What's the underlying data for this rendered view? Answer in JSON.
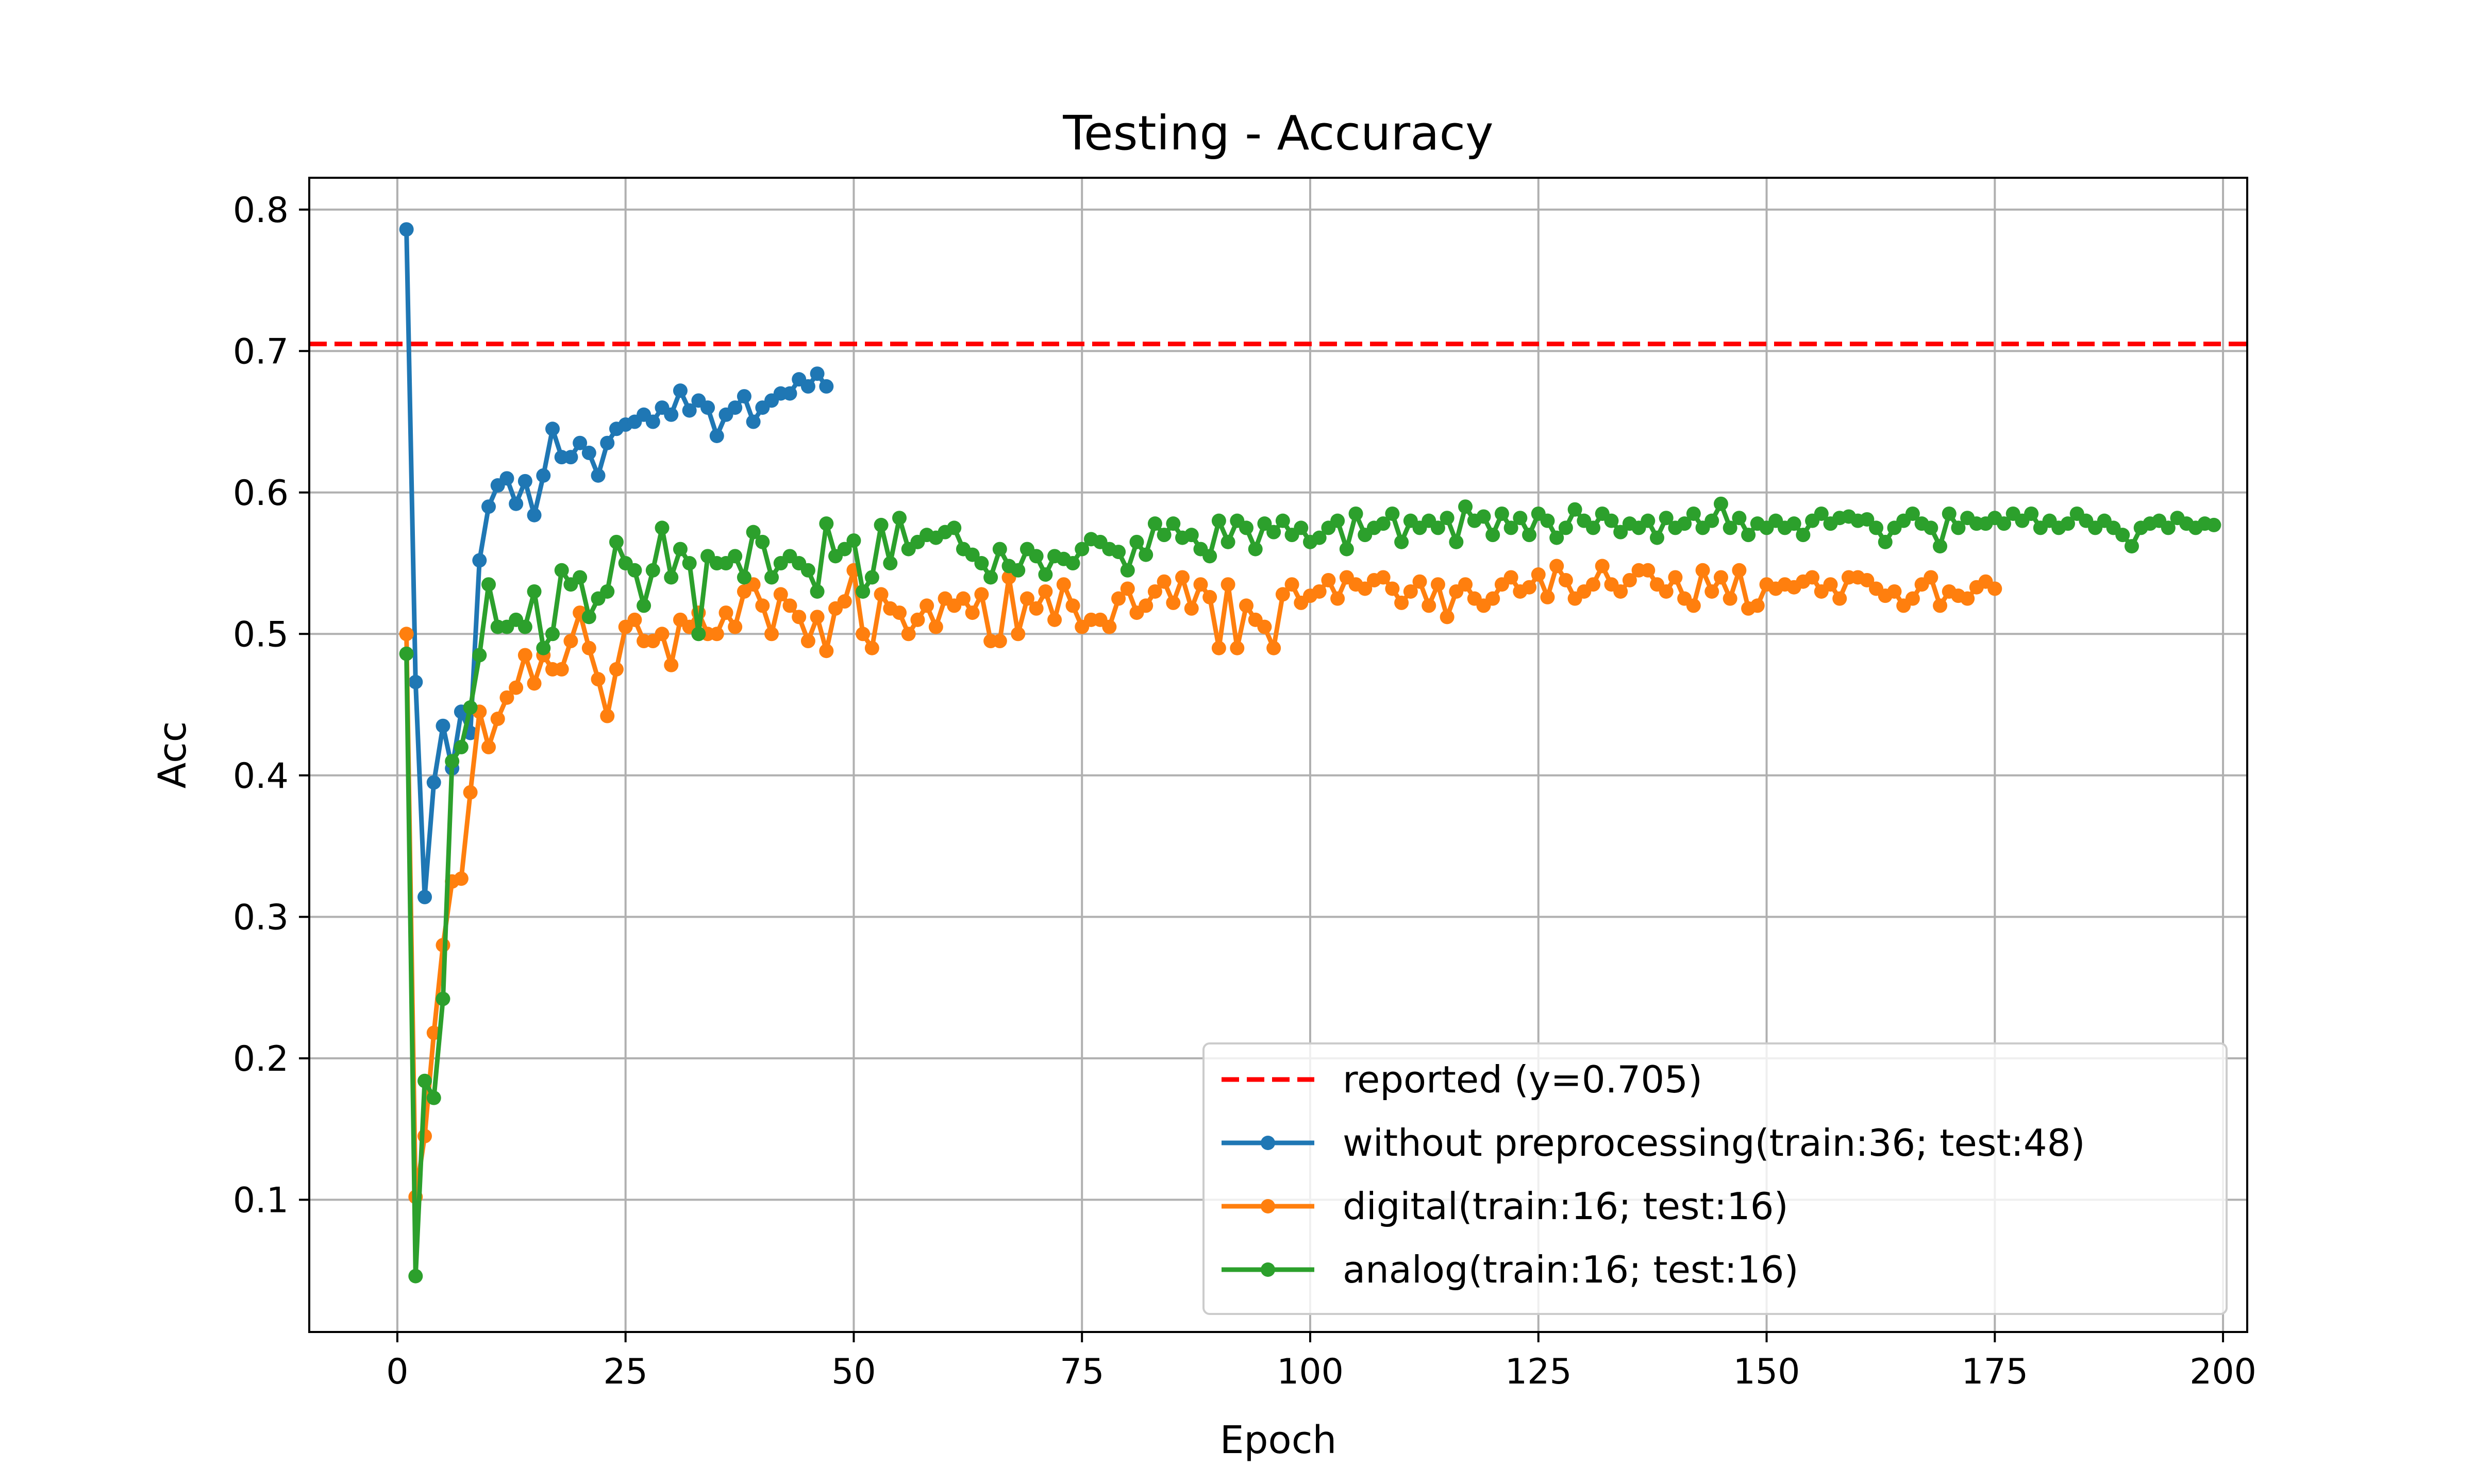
{
  "chart_data": {
    "type": "line",
    "title": "Testing - Accuracy",
    "xlabel": "Epoch",
    "ylabel": "Acc",
    "xlim": [
      -9.65,
      202.65
    ],
    "ylim": [
      0.0065,
      0.8225
    ],
    "xticks": [
      0,
      25,
      50,
      75,
      100,
      125,
      150,
      175,
      200
    ],
    "yticks": [
      0.1,
      0.2,
      0.3,
      0.4,
      0.5,
      0.6,
      0.7,
      0.8
    ],
    "xtick_labels": [
      "0",
      "25",
      "50",
      "75",
      "100",
      "125",
      "150",
      "175",
      "200"
    ],
    "ytick_labels": [
      "0.1",
      "0.2",
      "0.3",
      "0.4",
      "0.5",
      "0.6",
      "0.7",
      "0.8"
    ],
    "grid": true,
    "legend_position": "lower-right",
    "reference_line": {
      "label": "reported (y=0.705)",
      "y": 0.705,
      "color": "#ff0000",
      "style": "dashed"
    },
    "series": [
      {
        "name": "without preprocessing(train:36; test:48)",
        "color": "#1f77b4",
        "x_start": 1,
        "values": [
          0.786,
          0.466,
          0.314,
          0.395,
          0.435,
          0.405,
          0.445,
          0.43,
          0.552,
          0.59,
          0.605,
          0.61,
          0.592,
          0.608,
          0.584,
          0.612,
          0.645,
          0.625,
          0.625,
          0.635,
          0.628,
          0.612,
          0.635,
          0.645,
          0.648,
          0.65,
          0.655,
          0.65,
          0.66,
          0.655,
          0.672,
          0.658,
          0.665,
          0.66,
          0.64,
          0.655,
          0.66,
          0.668,
          0.65,
          0.66,
          0.665,
          0.67,
          0.67,
          0.68,
          0.675,
          0.684,
          0.675
        ]
      },
      {
        "name": "digital(train:16; test:16)",
        "color": "#ff7f0e",
        "x_start": 1,
        "values": [
          0.5,
          0.102,
          0.145,
          0.218,
          0.28,
          0.325,
          0.327,
          0.388,
          0.445,
          0.42,
          0.44,
          0.455,
          0.462,
          0.485,
          0.465,
          0.485,
          0.475,
          0.475,
          0.495,
          0.515,
          0.49,
          0.468,
          0.442,
          0.475,
          0.505,
          0.51,
          0.495,
          0.495,
          0.5,
          0.478,
          0.51,
          0.505,
          0.515,
          0.5,
          0.5,
          0.515,
          0.505,
          0.53,
          0.535,
          0.52,
          0.5,
          0.528,
          0.52,
          0.512,
          0.495,
          0.512,
          0.488,
          0.518,
          0.523,
          0.545,
          0.5,
          0.49,
          0.528,
          0.518,
          0.515,
          0.5,
          0.51,
          0.52,
          0.505,
          0.525,
          0.52,
          0.525,
          0.515,
          0.528,
          0.495,
          0.495,
          0.54,
          0.5,
          0.525,
          0.518,
          0.53,
          0.51,
          0.535,
          0.52,
          0.505,
          0.51,
          0.51,
          0.505,
          0.525,
          0.532,
          0.515,
          0.52,
          0.53,
          0.537,
          0.522,
          0.54,
          0.518,
          0.535,
          0.526,
          0.49,
          0.535,
          0.49,
          0.52,
          0.51,
          0.505,
          0.49,
          0.528,
          0.535,
          0.522,
          0.527,
          0.53,
          0.538,
          0.525,
          0.54,
          0.535,
          0.532,
          0.538,
          0.54,
          0.532,
          0.522,
          0.53,
          0.537,
          0.52,
          0.535,
          0.512,
          0.53,
          0.535,
          0.525,
          0.52,
          0.525,
          0.535,
          0.54,
          0.53,
          0.533,
          0.542,
          0.526,
          0.548,
          0.538,
          0.525,
          0.53,
          0.535,
          0.548,
          0.535,
          0.53,
          0.538,
          0.545,
          0.545,
          0.535,
          0.53,
          0.54,
          0.525,
          0.52,
          0.545,
          0.53,
          0.54,
          0.525,
          0.545,
          0.518,
          0.52,
          0.535,
          0.532,
          0.535,
          0.533,
          0.537,
          0.54,
          0.53,
          0.535,
          0.525,
          0.54,
          0.54,
          0.538,
          0.532,
          0.527,
          0.53,
          0.52,
          0.525,
          0.535,
          0.54,
          0.52,
          0.53,
          0.527,
          0.525,
          0.533,
          0.537,
          0.532
        ]
      },
      {
        "name": "analog(train:16; test:16)",
        "color": "#2ca02c",
        "x_start": 1,
        "values": [
          0.486,
          0.046,
          0.184,
          0.172,
          0.242,
          0.41,
          0.42,
          0.448,
          0.485,
          0.535,
          0.505,
          0.505,
          0.51,
          0.505,
          0.53,
          0.49,
          0.5,
          0.545,
          0.535,
          0.54,
          0.512,
          0.525,
          0.53,
          0.565,
          0.55,
          0.545,
          0.52,
          0.545,
          0.575,
          0.54,
          0.56,
          0.55,
          0.5,
          0.555,
          0.55,
          0.55,
          0.555,
          0.54,
          0.572,
          0.565,
          0.54,
          0.55,
          0.555,
          0.55,
          0.545,
          0.53,
          0.578,
          0.555,
          0.56,
          0.566,
          0.53,
          0.54,
          0.577,
          0.55,
          0.582,
          0.56,
          0.565,
          0.57,
          0.568,
          0.572,
          0.575,
          0.56,
          0.556,
          0.55,
          0.54,
          0.56,
          0.548,
          0.545,
          0.56,
          0.555,
          0.542,
          0.555,
          0.553,
          0.55,
          0.56,
          0.567,
          0.565,
          0.56,
          0.558,
          0.545,
          0.565,
          0.556,
          0.578,
          0.57,
          0.578,
          0.568,
          0.57,
          0.56,
          0.555,
          0.58,
          0.565,
          0.58,
          0.575,
          0.56,
          0.578,
          0.572,
          0.58,
          0.57,
          0.575,
          0.565,
          0.568,
          0.575,
          0.58,
          0.56,
          0.585,
          0.57,
          0.575,
          0.578,
          0.585,
          0.565,
          0.58,
          0.575,
          0.58,
          0.575,
          0.582,
          0.565,
          0.59,
          0.58,
          0.583,
          0.57,
          0.585,
          0.575,
          0.582,
          0.57,
          0.585,
          0.58,
          0.568,
          0.575,
          0.588,
          0.58,
          0.575,
          0.585,
          0.58,
          0.572,
          0.578,
          0.575,
          0.58,
          0.568,
          0.582,
          0.575,
          0.578,
          0.585,
          0.575,
          0.58,
          0.592,
          0.575,
          0.582,
          0.57,
          0.578,
          0.575,
          0.58,
          0.575,
          0.578,
          0.57,
          0.58,
          0.585,
          0.578,
          0.582,
          0.583,
          0.58,
          0.581,
          0.575,
          0.565,
          0.575,
          0.58,
          0.585,
          0.578,
          0.575,
          0.562,
          0.585,
          0.575,
          0.582,
          0.578,
          0.578,
          0.582,
          0.578,
          0.585,
          0.58,
          0.585,
          0.575,
          0.58,
          0.575,
          0.578,
          0.585,
          0.58,
          0.575,
          0.58,
          0.575,
          0.57,
          0.562,
          0.575,
          0.578,
          0.58,
          0.575,
          0.582,
          0.578,
          0.575,
          0.578,
          0.577
        ]
      }
    ]
  }
}
